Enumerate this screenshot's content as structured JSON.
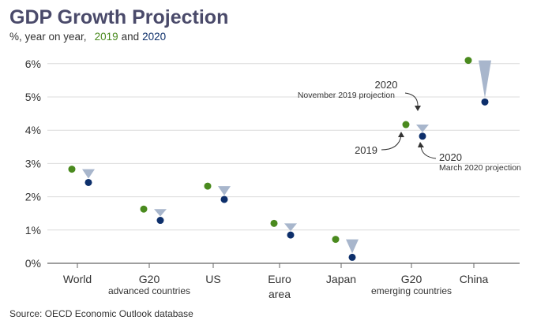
{
  "chart_data": {
    "type": "scatter",
    "title": "GDP Growth Projection",
    "subtitle": {
      "prefix": "%, year on year,",
      "series_a": "2019",
      "joiner": "and",
      "series_b": "2020"
    },
    "categories": [
      {
        "label": "World",
        "sublabel": ""
      },
      {
        "label": "G20",
        "sublabel": "advanced countries"
      },
      {
        "label": "US",
        "sublabel": ""
      },
      {
        "label": "Euro",
        "sublabel": "area"
      },
      {
        "label": "Japan",
        "sublabel": ""
      },
      {
        "label": "G20",
        "sublabel": "emerging countries"
      },
      {
        "label": "China",
        "sublabel": ""
      }
    ],
    "series": [
      {
        "name": "2019",
        "color": "#4a8a1e",
        "values": [
          2.83,
          1.63,
          2.32,
          1.2,
          0.72,
          4.17,
          6.1
        ]
      },
      {
        "name": "2020",
        "color": "#0d2f6b",
        "values": [
          2.43,
          1.29,
          1.92,
          0.85,
          0.18,
          3.82,
          4.85
        ]
      }
    ],
    "drop_color": "#a8b6cc",
    "y_ticks": [
      "0%",
      "1%",
      "2%",
      "3%",
      "4%",
      "5%",
      "6%"
    ],
    "ylim": [
      0,
      6.5
    ],
    "grid": true,
    "annotations": {
      "top_label": "2020",
      "top_sub": "November 2019 projection",
      "left_label": "2019",
      "right_label": "2020",
      "right_sub": "March 2020 projection"
    },
    "source": "Source: OECD Economic Outlook database"
  }
}
